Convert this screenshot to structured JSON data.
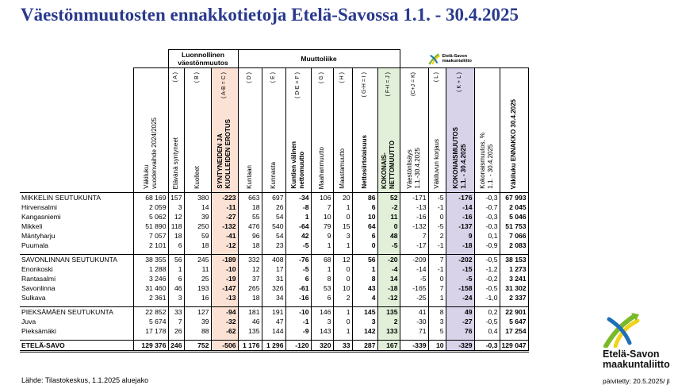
{
  "title": "Väestönmuutosten ennakkotietoja Etelä-Savossa 1.1. - 30.4.2025",
  "table": {
    "groups": [
      "Luonnollinen\nväestönmuutos",
      "Muuttoliike"
    ],
    "logo": "Etelä-Savon\nmaakuntaliitto",
    "columns": [
      {
        "label": "Väkiluku\nvuodenvaihde 2024/2025"
      },
      {
        "code": "( A )",
        "label": "Elävänä syntyneet"
      },
      {
        "code": "( B )",
        "label": "Kuolleet"
      },
      {
        "code": "( A-B = C )",
        "label": "SYNTYNEIDEN JA\nKUOLLEIDEN EROTUS"
      },
      {
        "code": "( D )",
        "label": "Kuntaan"
      },
      {
        "code": "( E )",
        "label": "Kunnasta"
      },
      {
        "code": "( D-E = F )",
        "label": "Kuntien välinen\nnettomuutto"
      },
      {
        "code": "( G )",
        "label": "Maahanmuutto"
      },
      {
        "code": "( H )",
        "label": "Maastamuutto"
      },
      {
        "code": "( G-H = I )",
        "label": "Nettosiirtolaisuus"
      },
      {
        "code": "( F+I = J )",
        "label": "KOKONAIS-\nNETTOMUUTTO"
      },
      {
        "code": "(C+J = K)",
        "label": "Väestönlisäys\n1.1.-30.4.2025"
      },
      {
        "code": "( L )",
        "label": "Väkiluvun korjaus"
      },
      {
        "code": "( K + L )",
        "label": "KOKONAISMUUTOS\n1.1. - 30.4.2025"
      },
      {
        "label": "Kokonaismuutos, %\n1.1. - 30.4.2025"
      },
      {
        "label": "Väkiluku ENNAKKO 30.4.2025"
      }
    ],
    "rows": [
      {
        "name": "MIKKELIN SEUTUKUNTA",
        "cells": [
          "68 169",
          "157",
          "380",
          "-223",
          "663",
          "697",
          "-34",
          "106",
          "20",
          "86",
          "52",
          "-171",
          "-5",
          "-176",
          "-0,3",
          "67 993"
        ]
      },
      {
        "name": "Hirvensalmi",
        "cells": [
          "2 059",
          "3",
          "14",
          "-11",
          "18",
          "26",
          "-8",
          "7",
          "1",
          "6",
          "-2",
          "-13",
          "-1",
          "-14",
          "-0,7",
          "2 045"
        ]
      },
      {
        "name": "Kangasniemi",
        "cells": [
          "5 062",
          "12",
          "39",
          "-27",
          "55",
          "54",
          "1",
          "10",
          "0",
          "10",
          "11",
          "-16",
          "0",
          "-16",
          "-0,3",
          "5 046"
        ]
      },
      {
        "name": "Mikkeli",
        "cells": [
          "51 890",
          "118",
          "250",
          "-132",
          "476",
          "540",
          "-64",
          "79",
          "15",
          "64",
          "0",
          "-132",
          "-5",
          "-137",
          "-0,3",
          "51 753"
        ]
      },
      {
        "name": "Mäntyharju",
        "cells": [
          "7 057",
          "18",
          "59",
          "-41",
          "96",
          "54",
          "42",
          "9",
          "3",
          "6",
          "48",
          "7",
          "2",
          "9",
          "0,1",
          "7 066"
        ]
      },
      {
        "name": "Puumala",
        "cells": [
          "2 101",
          "6",
          "18",
          "-12",
          "18",
          "23",
          "-5",
          "1",
          "1",
          "0",
          "-5",
          "-17",
          "-1",
          "-18",
          "-0,9",
          "2 083"
        ]
      },
      {
        "name": "SAVONLINNAN SEUTUKUNTA",
        "cells": [
          "38 355",
          "56",
          "245",
          "-189",
          "332",
          "408",
          "-76",
          "68",
          "12",
          "56",
          "-20",
          "-209",
          "7",
          "-202",
          "-0,5",
          "38 153"
        ]
      },
      {
        "name": "Enonkoski",
        "cells": [
          "1 288",
          "1",
          "11",
          "-10",
          "12",
          "17",
          "-5",
          "1",
          "0",
          "1",
          "-4",
          "-14",
          "-1",
          "-15",
          "-1,2",
          "1 273"
        ]
      },
      {
        "name": "Rantasalmi",
        "cells": [
          "3 246",
          "6",
          "25",
          "-19",
          "37",
          "31",
          "6",
          "8",
          "0",
          "8",
          "14",
          "-5",
          "0",
          "-5",
          "-0,2",
          "3 241"
        ]
      },
      {
        "name": "Savonlinna",
        "cells": [
          "31 460",
          "46",
          "193",
          "-147",
          "265",
          "326",
          "-61",
          "53",
          "10",
          "43",
          "-18",
          "-165",
          "7",
          "-158",
          "-0,5",
          "31 302"
        ]
      },
      {
        "name": "Sulkava",
        "cells": [
          "2 361",
          "3",
          "16",
          "-13",
          "18",
          "34",
          "-16",
          "6",
          "2",
          "4",
          "-12",
          "-25",
          "1",
          "-24",
          "-1,0",
          "2 337"
        ]
      },
      {
        "name": "PIEKSÄMÄEN SEUTUKUNTA",
        "cells": [
          "22 852",
          "33",
          "127",
          "-94",
          "181",
          "191",
          "-10",
          "146",
          "1",
          "145",
          "135",
          "41",
          "8",
          "49",
          "0,2",
          "22 901"
        ]
      },
      {
        "name": "Juva",
        "cells": [
          "5 674",
          "7",
          "39",
          "-32",
          "46",
          "47",
          "-1",
          "3",
          "0",
          "3",
          "2",
          "-30",
          "3",
          "-27",
          "-0,5",
          "5 647"
        ]
      },
      {
        "name": "Pieksämäki",
        "cells": [
          "17 178",
          "26",
          "88",
          "-62",
          "135",
          "144",
          "-9",
          "143",
          "1",
          "142",
          "133",
          "71",
          "5",
          "76",
          "0,4",
          "17 254"
        ]
      },
      {
        "name": "ETELÄ-SAVO",
        "cells": [
          "129 376",
          "246",
          "752",
          "-506",
          "1 176",
          "1 296",
          "-120",
          "320",
          "33",
          "287",
          "167",
          "-339",
          "10",
          "-329",
          "-0,3",
          "129 047"
        ]
      }
    ]
  },
  "source": "Lähde: Tilastokeskus, 1.1.2025 aluejako",
  "footer": {
    "logo": "Etelä-Savon\nmaakuntaliitto",
    "updated": "päivitetty: 20.5.2025/ jl"
  }
}
